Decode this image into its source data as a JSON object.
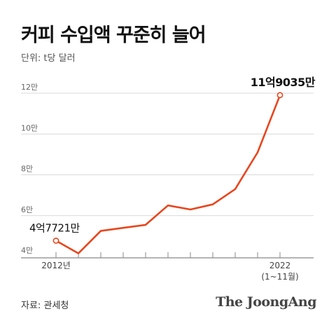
{
  "title": "커피 수입액 꾸준히 늘어",
  "unit_label": "단위: t당 달러",
  "source": "자료: 관세청",
  "brand": "The JoongAng",
  "colors": {
    "line": "#e8461e",
    "grid": "#d9d9d9",
    "axis": "#888888"
  },
  "chart_data": {
    "type": "line",
    "title": "커피 수입액 꾸준히 늘어",
    "ylabel": "단위: t당 달러",
    "ylim": [
      4,
      12
    ],
    "yticks": [
      {
        "value": 4,
        "label": "4만"
      },
      {
        "value": 6,
        "label": "6만"
      },
      {
        "value": 8,
        "label": "8만"
      },
      {
        "value": 10,
        "label": "10만"
      },
      {
        "value": 12,
        "label": "12만"
      }
    ],
    "x": [
      2012,
      2013,
      2014,
      2015,
      2016,
      2017,
      2018,
      2019,
      2020,
      2021,
      2022
    ],
    "xtick_labels": [
      {
        "value": 2012,
        "lines": [
          "2012년"
        ]
      },
      {
        "value": 2022,
        "lines": [
          "2022",
          "(1~11월)"
        ]
      }
    ],
    "series": [
      {
        "values": [
          4.7721,
          4.15,
          5.25,
          5.4,
          5.55,
          6.5,
          6.3,
          6.55,
          7.3,
          9.1,
          11.9035
        ]
      }
    ],
    "annotations": [
      {
        "x": 2012,
        "y": 4.7721,
        "text": "4억7721만",
        "align": "start"
      },
      {
        "x": 2022,
        "y": 11.9035,
        "text": "11억9035만",
        "align": "end"
      }
    ],
    "grid": true
  }
}
